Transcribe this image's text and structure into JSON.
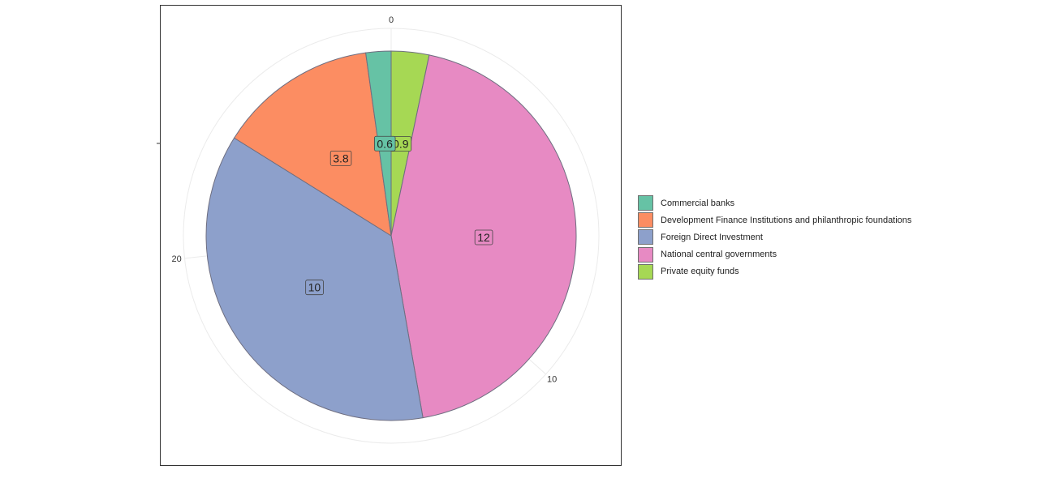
{
  "chart_data": {
    "type": "pie",
    "categories": [
      "Commercial banks",
      "Development Finance Institutions and philanthropic foundations",
      "Foreign Direct Investment",
      "National central governments",
      "Private equity funds"
    ],
    "values": [
      0.6,
      3.8,
      10,
      12,
      0.9
    ],
    "value_labels": [
      "0.6",
      "3.8",
      "10",
      "12",
      "0.9"
    ],
    "colors": [
      "#66c2a5",
      "#fc8d62",
      "#8da0cb",
      "#e78ac3",
      "#a6d854"
    ],
    "slice_order_clockwise_from_top": [
      "Private equity funds",
      "National central governments",
      "Foreign Direct Investment",
      "Development Finance Institutions and philanthropic foundations",
      "Commercial banks"
    ],
    "axis_ticks": [
      "0",
      "10",
      "20"
    ],
    "axis_tick_values": [
      0,
      10,
      20
    ],
    "legend_position": "right",
    "grid": true
  },
  "legend": {
    "items": [
      "Commercial banks",
      "Development Finance Institutions and philanthropic foundations",
      "Foreign Direct Investment",
      "National central governments",
      "Private equity funds"
    ]
  }
}
